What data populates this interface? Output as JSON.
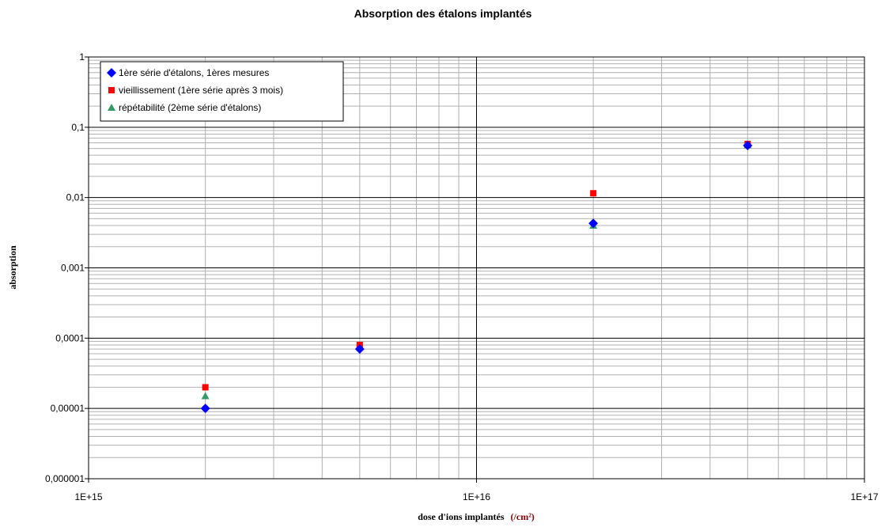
{
  "chart_data": {
    "type": "scatter",
    "title": "Absorption des étalons implantés",
    "xlabel": "dose d'ions implantés",
    "xlabel_unit": "(/cm²)",
    "ylabel": "absorption",
    "x_scale": "log",
    "y_scale": "log",
    "xlim": [
      1000000000000000.0,
      1e+17
    ],
    "ylim": [
      1e-06,
      1
    ],
    "x_tick_labels": [
      "1E+15",
      "1E+16",
      "1E+17"
    ],
    "y_tick_labels": [
      "1",
      "0,1",
      "0,01",
      "0,001",
      "0,0001",
      "0,00001",
      "0,000001"
    ],
    "grid": true,
    "legend_position": "top-left",
    "series": [
      {
        "name": "1ère série d'étalons, 1ères mesures",
        "marker": "diamond",
        "color": "#0000ff",
        "points": [
          {
            "x": 2000000000000000.0,
            "y": 1e-05
          },
          {
            "x": 5000000000000000.0,
            "y": 7e-05
          },
          {
            "x": 2e+16,
            "y": 0.0043
          },
          {
            "x": 5e+16,
            "y": 0.055
          }
        ]
      },
      {
        "name": "vieillissement (1ère série après 3 mois)",
        "marker": "square",
        "color": "#ff0000",
        "points": [
          {
            "x": 2000000000000000.0,
            "y": 2e-05
          },
          {
            "x": 5000000000000000.0,
            "y": 8e-05
          },
          {
            "x": 2e+16,
            "y": 0.0115
          },
          {
            "x": 5e+16,
            "y": 0.058
          }
        ]
      },
      {
        "name": "répétabilité (2ème série d'étalons)",
        "marker": "triangle",
        "color": "#339966",
        "points": [
          {
            "x": 2000000000000000.0,
            "y": 1.5e-05
          },
          {
            "x": 5000000000000000.0,
            "y": 7.5e-05
          },
          {
            "x": 2e+16,
            "y": 0.004
          },
          {
            "x": 5e+16,
            "y": 0.056
          }
        ]
      }
    ]
  }
}
